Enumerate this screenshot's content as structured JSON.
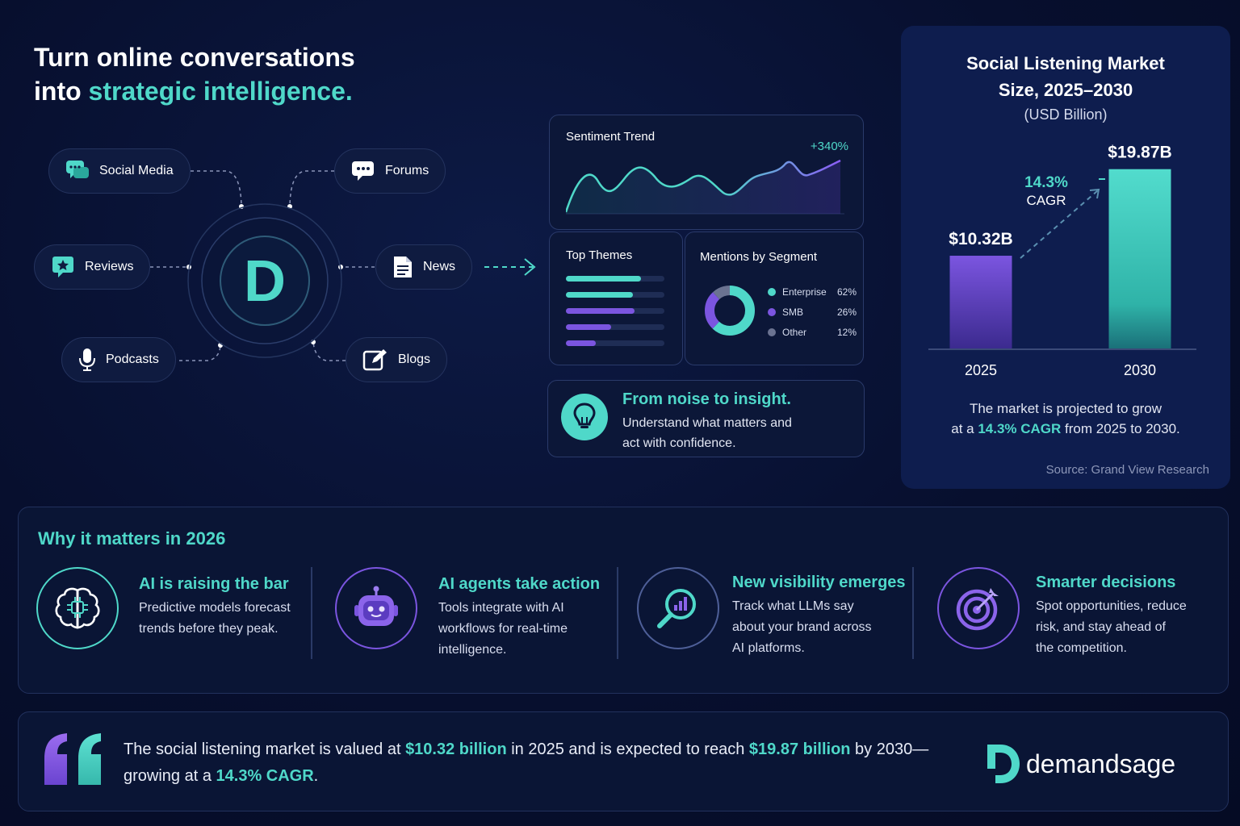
{
  "headline": {
    "line1": "Turn online conversations",
    "line2_prefix": "into ",
    "line2_highlight": "strategic intelligence."
  },
  "sources": {
    "social_media": "Social Media",
    "forums": "Forums",
    "reviews": "Reviews",
    "news": "News",
    "podcasts": "Podcasts",
    "blogs": "Blogs"
  },
  "hub": {
    "letter": "D"
  },
  "sentiment": {
    "title": "Sentiment Trend",
    "change": "+340%"
  },
  "themes": {
    "title": "Top Themes",
    "levels": [
      0.76,
      0.68,
      0.7,
      0.46,
      0.3
    ]
  },
  "segments": {
    "title": "Mentions by Segment",
    "items": [
      {
        "name": "Enterprise",
        "value": "62%",
        "share": 62,
        "color": "#4fd8c9"
      },
      {
        "name": "SMB",
        "value": "26%",
        "share": 26,
        "color": "#7b55e0"
      },
      {
        "name": "Other",
        "value": "12%",
        "share": 12,
        "color": "#6b7391"
      }
    ]
  },
  "insight": {
    "title": "From noise to insight.",
    "line1": "Understand what matters and",
    "line2": "act with confidence."
  },
  "colors": {
    "accent": "#4fd8c9",
    "purple": "#7b55e0",
    "background": "#070f2e"
  },
  "chart_data": {
    "type": "bar",
    "title_line1": "Social Listening Market",
    "title_line2": "Size, 2025–2030",
    "subtitle": "(USD Billion)",
    "categories": [
      "2025",
      "2030"
    ],
    "values": [
      10.32,
      19.87
    ],
    "value_labels": [
      "$10.32B",
      "$19.87B"
    ],
    "ylim": [
      0,
      21
    ],
    "cagr_value": "14.3%",
    "cagr_label": "CAGR",
    "note_line1": "The market is projected to grow",
    "note_prefix": "at a ",
    "note_highlight": "14.3% CAGR",
    "note_suffix": " from 2025 to 2030.",
    "source": "Source: Grand View Research",
    "grid": false
  },
  "why": {
    "heading": "Why it matters in 2026",
    "items": [
      {
        "title": "AI is raising the bar",
        "line1": "Predictive models forecast",
        "line2": "trends before they peak.",
        "line3": "",
        "icon": "brain-icon"
      },
      {
        "title": "AI agents take action",
        "line1": "Tools integrate with AI",
        "line2": "workflows for real-time",
        "line3": "intelligence.",
        "icon": "robot-icon"
      },
      {
        "title": "New visibility emerges",
        "line1": "Track what LLMs say",
        "line2": "about your brand across",
        "line3": "AI platforms.",
        "icon": "magnifier-chart-icon"
      },
      {
        "title": "Smarter decisions",
        "line1": "Spot opportunities, reduce",
        "line2": "risk, and stay ahead of",
        "line3": "the competition.",
        "icon": "target-icon"
      }
    ]
  },
  "quote": {
    "part1": "The social listening market is valued at ",
    "value1": "$10.32 billion",
    "part2": " in 2025 and is expected to reach ",
    "value2": "$19.87 billion",
    "part3": " by 2030—growing at a ",
    "value3": "14.3% CAGR",
    "part4": "."
  },
  "brand": {
    "name": "demandsage"
  }
}
